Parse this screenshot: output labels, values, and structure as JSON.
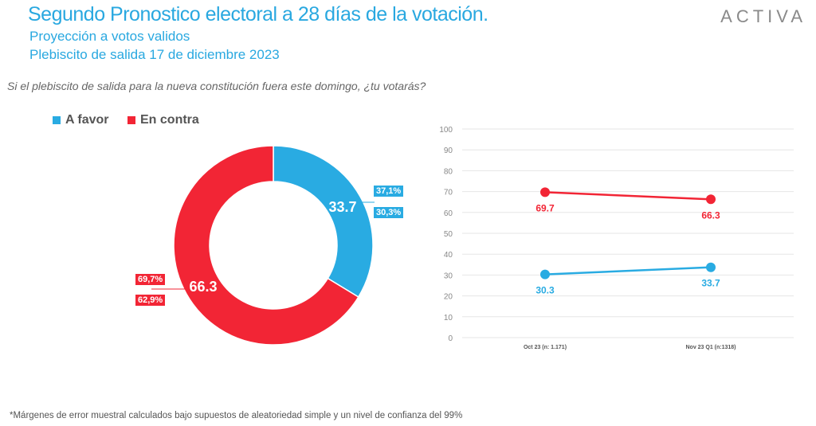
{
  "header": {
    "title": "Segundo Pronostico electoral a 28 días de la votación.",
    "subtitle1": "Proyección a votos validos",
    "subtitle2": "Plebiscito de salida 17 de diciembre 2023",
    "logo": "ACTIVA"
  },
  "question": "Si el plebiscito de salida para la nueva constitución fuera este domingo, ¿tu votarás?",
  "legend": [
    {
      "label": "A favor",
      "color": "#29abe2"
    },
    {
      "label": "En contra",
      "color": "#f22535"
    }
  ],
  "range_boxes": {
    "favor_high": "37,1%",
    "favor_low": "30,3%",
    "contra_high": "69,7%",
    "contra_low": "62,9%"
  },
  "footnote": "*Márgenes de error muestral calculados bajo supuestos de aleatoriedad simple y un nivel de confianza del 99%",
  "chart_data": [
    {
      "type": "pie",
      "donut": true,
      "labels": [
        "A favor",
        "En contra"
      ],
      "values": [
        33.7,
        66.3
      ],
      "value_labels": [
        "33.7",
        "66.3"
      ],
      "colors": [
        "#29abe2",
        "#f22535"
      ]
    },
    {
      "type": "line",
      "categories": [
        "Oct 23 (n: 1.171)",
        "Nov 23 Q1 (n:1318)"
      ],
      "ylim": [
        0,
        100
      ],
      "yticks": [
        "0",
        "10",
        "20",
        "30",
        "40",
        "50",
        "60",
        "70",
        "80",
        "90",
        "100"
      ],
      "grid": true,
      "series": [
        {
          "name": "En contra",
          "color": "#f22535",
          "values": [
            69.7,
            66.3
          ],
          "labels": [
            "69.7",
            "66.3"
          ]
        },
        {
          "name": "A favor",
          "color": "#29abe2",
          "values": [
            30.3,
            33.7
          ],
          "labels": [
            "30.3",
            "33.7"
          ]
        }
      ]
    }
  ]
}
